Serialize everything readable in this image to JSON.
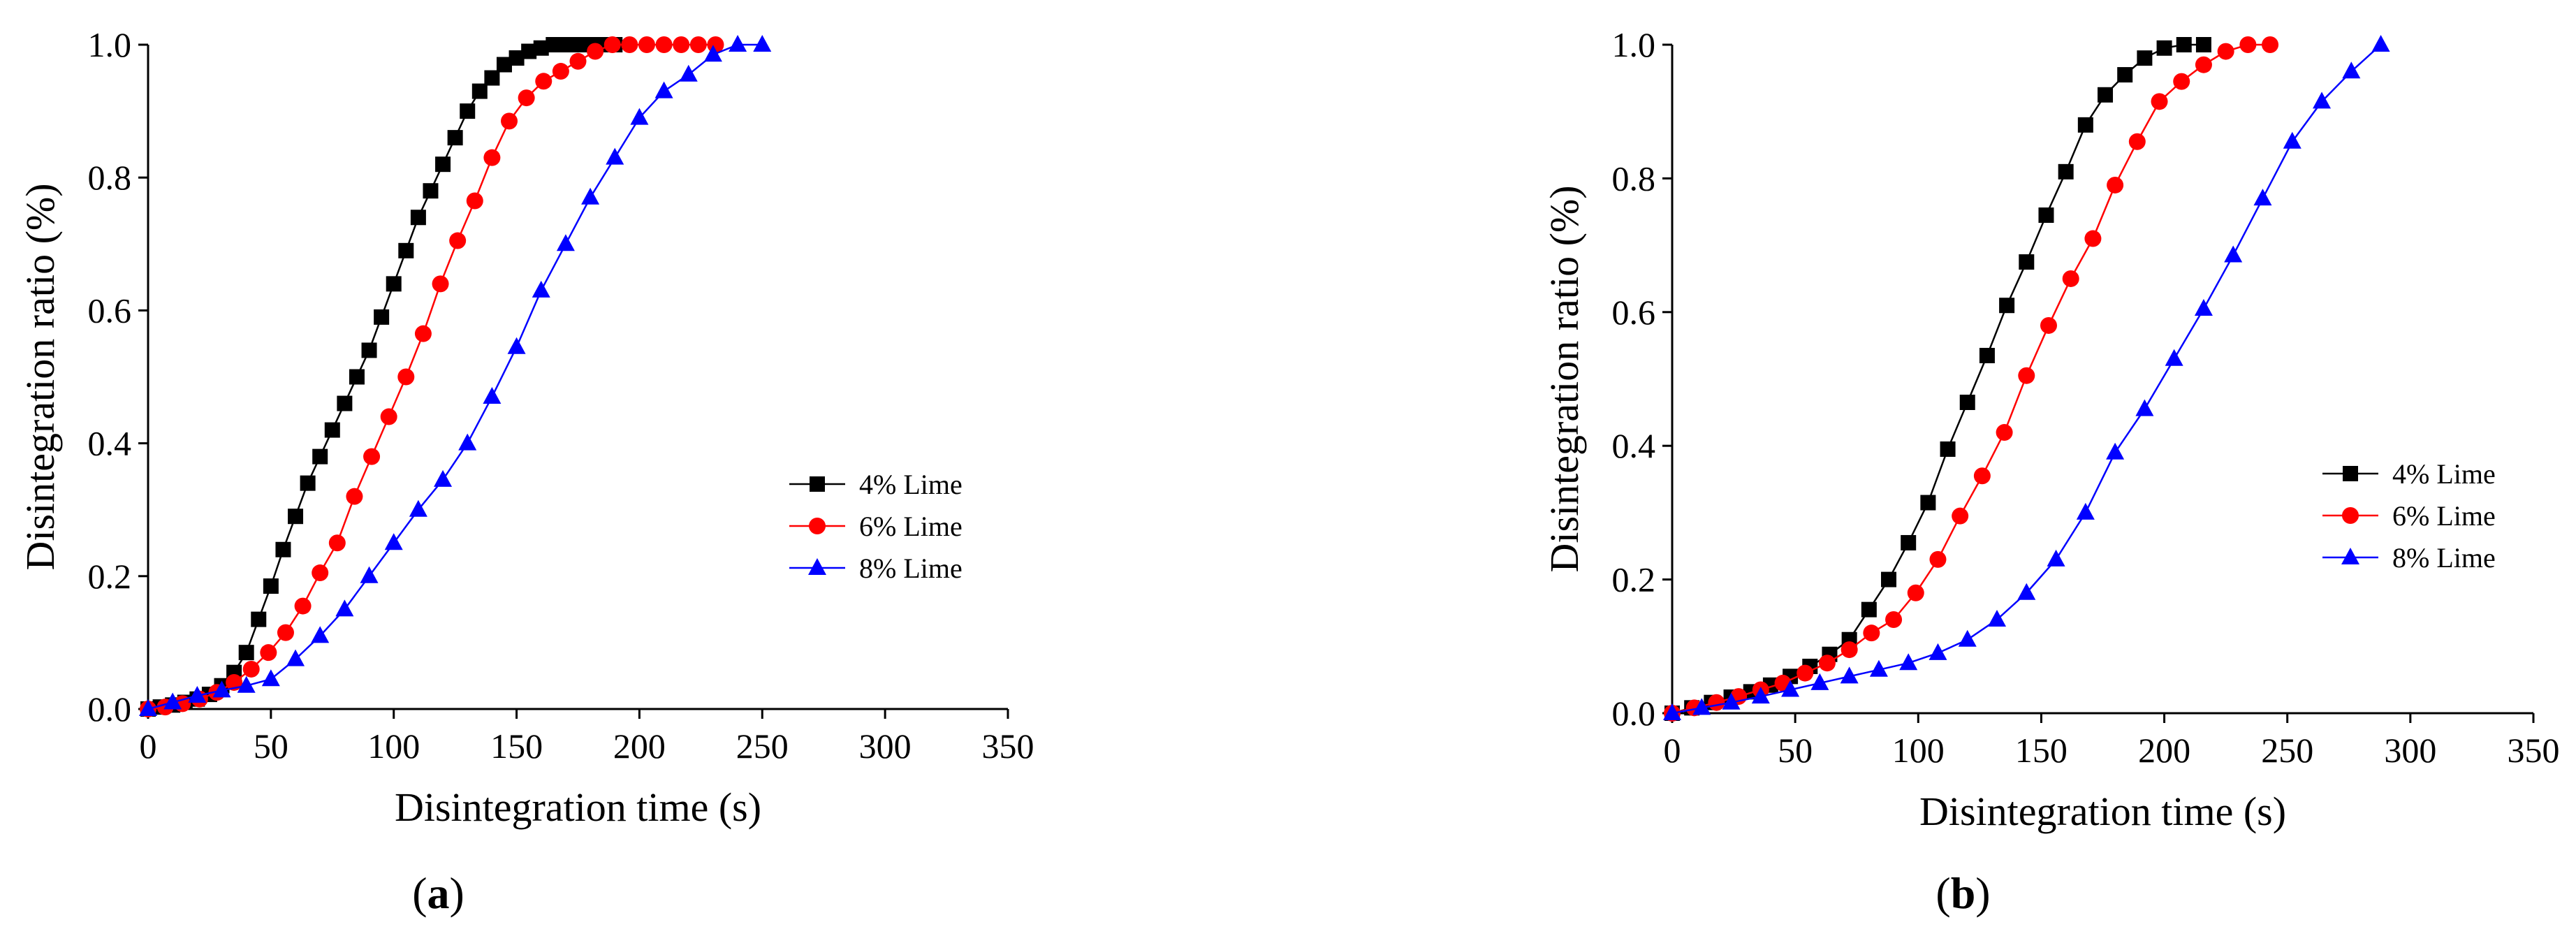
{
  "chart_data": [
    {
      "type": "line",
      "panel_label": "(a)",
      "panel_letter": "a",
      "xlabel": "Disintegration time (s)",
      "ylabel": "Disintegration ratio (%)",
      "xlim": [
        0,
        350
      ],
      "ylim": [
        0,
        1.0
      ],
      "xticks": [
        "0",
        "50",
        "100",
        "150",
        "200",
        "250",
        "300",
        "350"
      ],
      "yticks": [
        "0.0",
        "0.2",
        "0.4",
        "0.6",
        "0.8",
        "1.0"
      ],
      "grid": false,
      "legend_position": "right",
      "series": [
        {
          "name": "4% Lime",
          "color": "#000000",
          "marker": "square",
          "x": [
            0,
            5,
            10,
            15,
            20,
            25,
            30,
            35,
            40,
            45,
            50,
            55,
            60,
            65,
            70,
            75,
            80,
            85,
            90,
            95,
            100,
            105,
            110,
            115,
            120,
            125,
            130,
            135,
            140,
            145,
            150,
            155,
            160,
            165,
            170,
            175,
            180,
            185,
            190
          ],
          "y": [
            0.0,
            0.003,
            0.006,
            0.01,
            0.015,
            0.022,
            0.035,
            0.055,
            0.085,
            0.135,
            0.185,
            0.24,
            0.29,
            0.34,
            0.38,
            0.42,
            0.46,
            0.5,
            0.54,
            0.59,
            0.64,
            0.69,
            0.74,
            0.78,
            0.82,
            0.86,
            0.9,
            0.93,
            0.95,
            0.97,
            0.98,
            0.99,
            0.995,
            1.0,
            1.0,
            1.0,
            1.0,
            1.0,
            1.0
          ]
        },
        {
          "name": "6% Lime",
          "color": "#ff0000",
          "marker": "circle",
          "x": [
            0,
            7,
            14,
            21,
            28,
            35,
            42,
            49,
            56,
            63,
            70,
            77,
            84,
            91,
            98,
            105,
            112,
            119,
            126,
            133,
            140,
            147,
            154,
            161,
            168,
            175,
            182,
            189,
            196,
            203,
            210,
            217,
            224,
            231
          ],
          "y": [
            0.0,
            0.003,
            0.008,
            0.015,
            0.025,
            0.04,
            0.06,
            0.085,
            0.115,
            0.155,
            0.205,
            0.25,
            0.32,
            0.38,
            0.44,
            0.5,
            0.565,
            0.64,
            0.705,
            0.765,
            0.83,
            0.885,
            0.92,
            0.945,
            0.96,
            0.975,
            0.99,
            1.0,
            1.0,
            1.0,
            1.0,
            1.0,
            1.0,
            1.0
          ]
        },
        {
          "name": "8% Lime",
          "color": "#0000ff",
          "marker": "triangle",
          "x": [
            0,
            10,
            20,
            30,
            40,
            50,
            60,
            70,
            80,
            90,
            100,
            110,
            120,
            130,
            140,
            150,
            160,
            170,
            180,
            190,
            200,
            210,
            220,
            230,
            240,
            250
          ],
          "y": [
            0.0,
            0.01,
            0.02,
            0.028,
            0.035,
            0.045,
            0.075,
            0.11,
            0.15,
            0.2,
            0.25,
            0.3,
            0.345,
            0.4,
            0.47,
            0.545,
            0.63,
            0.7,
            0.77,
            0.83,
            0.89,
            0.93,
            0.955,
            0.985,
            1.0,
            1.0
          ]
        }
      ]
    },
    {
      "type": "line",
      "panel_label": "(b)",
      "panel_letter": "b",
      "xlabel": "Disintegration time (s)",
      "ylabel": "Disintegration ratio (%)",
      "xlim": [
        0,
        350
      ],
      "ylim": [
        0,
        1.0
      ],
      "xticks": [
        "0",
        "50",
        "100",
        "150",
        "200",
        "250",
        "300",
        "350"
      ],
      "yticks": [
        "0.0",
        "0.2",
        "0.4",
        "0.6",
        "0.8",
        "1.0"
      ],
      "grid": false,
      "legend_position": "right",
      "series": [
        {
          "name": "4% Lime",
          "color": "#000000",
          "marker": "square",
          "x": [
            0,
            8,
            16,
            24,
            32,
            40,
            48,
            56,
            64,
            72,
            80,
            88,
            96,
            104,
            112,
            120,
            128,
            136,
            144,
            152,
            160,
            168,
            176,
            184,
            192,
            200,
            208,
            216
          ],
          "y": [
            0.0,
            0.008,
            0.016,
            0.024,
            0.032,
            0.042,
            0.055,
            0.07,
            0.088,
            0.11,
            0.155,
            0.2,
            0.255,
            0.315,
            0.395,
            0.465,
            0.535,
            0.61,
            0.675,
            0.745,
            0.81,
            0.88,
            0.925,
            0.955,
            0.98,
            0.995,
            1.0,
            1.0
          ]
        },
        {
          "name": "6% Lime",
          "color": "#ff0000",
          "marker": "circle",
          "x": [
            0,
            9,
            18,
            27,
            36,
            45,
            54,
            63,
            72,
            81,
            90,
            99,
            108,
            117,
            126,
            135,
            144,
            153,
            162,
            171,
            180,
            189,
            198,
            207,
            216,
            225,
            234,
            243
          ],
          "y": [
            0.0,
            0.008,
            0.016,
            0.025,
            0.035,
            0.045,
            0.06,
            0.075,
            0.095,
            0.12,
            0.14,
            0.18,
            0.23,
            0.295,
            0.355,
            0.42,
            0.505,
            0.58,
            0.65,
            0.71,
            0.79,
            0.855,
            0.915,
            0.945,
            0.97,
            0.99,
            1.0,
            1.0
          ]
        },
        {
          "name": "8% Lime",
          "color": "#0000ff",
          "marker": "triangle",
          "x": [
            0,
            12,
            24,
            36,
            48,
            60,
            72,
            84,
            96,
            108,
            120,
            132,
            144,
            156,
            168,
            180,
            192,
            204,
            216,
            228,
            240,
            252,
            264,
            276,
            288
          ],
          "y": [
            0.0,
            0.008,
            0.016,
            0.025,
            0.035,
            0.045,
            0.055,
            0.065,
            0.075,
            0.09,
            0.11,
            0.14,
            0.18,
            0.23,
            0.3,
            0.39,
            0.455,
            0.53,
            0.605,
            0.685,
            0.77,
            0.855,
            0.915,
            0.96,
            1.0
          ]
        }
      ]
    }
  ]
}
